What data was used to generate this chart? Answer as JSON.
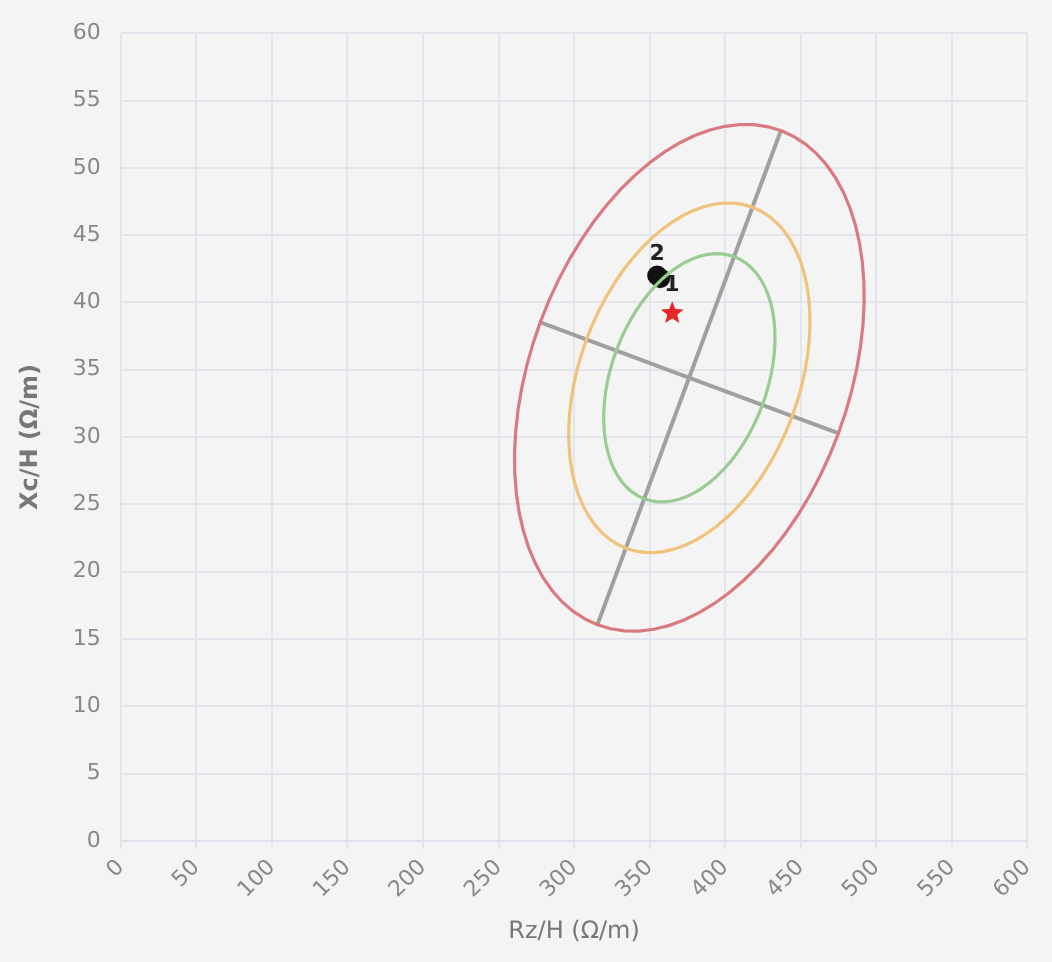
{
  "chart_data": {
    "type": "scatter",
    "xlabel": "Rz/H (Ω/m)",
    "ylabel": "Xc/H (Ω/m)",
    "xlim": [
      0,
      600
    ],
    "xticks": [
      0,
      50,
      100,
      150,
      200,
      250,
      300,
      350,
      400,
      450,
      500,
      550,
      600
    ],
    "ylim": [
      0,
      60
    ],
    "yticks": [
      0,
      5,
      10,
      15,
      20,
      25,
      30,
      35,
      40,
      45,
      50,
      55,
      60
    ],
    "grid": true,
    "legend": false,
    "series": [
      {
        "type": "line",
        "marker": "none",
        "color": "#a0a0a0",
        "x": [
          315.6,
          437.0
        ],
        "values": [
          16.1,
          52.8
        ]
      },
      {
        "type": "line",
        "marker": "none",
        "color": "#a0a0a0",
        "x": [
          278.2,
          474.4
        ],
        "values": [
          38.5,
          30.3
        ]
      },
      {
        "type": "scatter",
        "marker": "circle",
        "color": "#111111",
        "x": [
          355,
          357
        ],
        "values": [
          42.0,
          41.8
        ]
      },
      {
        "type": "scatter",
        "marker": "star",
        "color": "#e8262a",
        "x": [
          365
        ],
        "values": [
          39.2
        ]
      }
    ],
    "annotations": [
      {
        "text": "2",
        "x": 355,
        "y": 42.0
      },
      {
        "text": "1",
        "x": 357,
        "y": 41.8
      }
    ]
  }
}
